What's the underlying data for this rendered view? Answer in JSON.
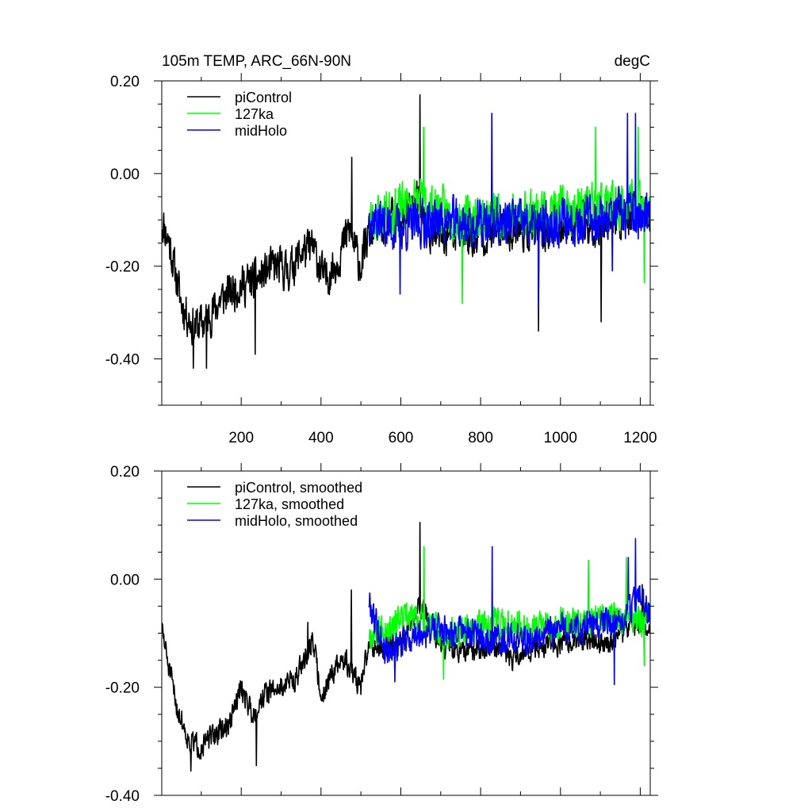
{
  "chart_data": [
    {
      "type": "line",
      "title": "105m TEMP, ARC_66N-90N",
      "units": "degC",
      "xlabel": "",
      "ylabel": "",
      "xlim": [
        1,
        1225
      ],
      "ylim": [
        -0.5,
        0.2
      ],
      "x_ticks": [
        200,
        400,
        600,
        800,
        1000,
        1200
      ],
      "x_tick_labels": [
        "200",
        "400",
        "600",
        "800",
        "1000",
        "1200"
      ],
      "y_ticks": [
        0.2,
        0.0,
        -0.2,
        -0.4
      ],
      "y_tick_labels": [
        "0.20",
        "0.00",
        "-0.20",
        "-0.40"
      ],
      "legend_position": "top-left",
      "series": [
        {
          "name": "piControl",
          "color": "#000000",
          "x_start": 1,
          "x_end": 1225,
          "noise": 0.06,
          "seed": 11,
          "anchors": [
            [
              1,
              -0.1
            ],
            [
              20,
              -0.15
            ],
            [
              50,
              -0.28
            ],
            [
              80,
              -0.33
            ],
            [
              110,
              -0.32
            ],
            [
              150,
              -0.27
            ],
            [
              200,
              -0.24
            ],
            [
              240,
              -0.23
            ],
            [
              280,
              -0.2
            ],
            [
              320,
              -0.21
            ],
            [
              350,
              -0.17
            ],
            [
              380,
              -0.16
            ],
            [
              410,
              -0.23
            ],
            [
              440,
              -0.19
            ],
            [
              470,
              -0.12
            ],
            [
              500,
              -0.2
            ],
            [
              520,
              -0.13
            ],
            [
              560,
              -0.11
            ],
            [
              600,
              -0.1
            ],
            [
              640,
              -0.06
            ],
            [
              680,
              -0.14
            ],
            [
              720,
              -0.13
            ],
            [
              780,
              -0.14
            ],
            [
              840,
              -0.12
            ],
            [
              900,
              -0.12
            ],
            [
              960,
              -0.13
            ],
            [
              1020,
              -0.1
            ],
            [
              1080,
              -0.12
            ],
            [
              1120,
              -0.09
            ],
            [
              1160,
              -0.1
            ],
            [
              1200,
              -0.08
            ],
            [
              1225,
              -0.1
            ]
          ],
          "spikes": [
            [
              648,
              0.17
            ],
            [
              477,
              0.035
            ],
            [
              80,
              -0.42
            ],
            [
              113,
              -0.42
            ],
            [
              235,
              -0.39
            ],
            [
              1102,
              -0.32
            ],
            [
              945,
              -0.34
            ]
          ]
        },
        {
          "name": "127ka",
          "color": "#00ff00",
          "x_start": 520,
          "x_end": 1225,
          "noise": 0.07,
          "seed": 23,
          "anchors": [
            [
              520,
              -0.1
            ],
            [
              580,
              -0.08
            ],
            [
              640,
              -0.06
            ],
            [
              700,
              -0.08
            ],
            [
              760,
              -0.1
            ],
            [
              820,
              -0.09
            ],
            [
              880,
              -0.09
            ],
            [
              940,
              -0.08
            ],
            [
              1000,
              -0.08
            ],
            [
              1060,
              -0.07
            ],
            [
              1120,
              -0.07
            ],
            [
              1180,
              -0.07
            ],
            [
              1225,
              -0.08
            ]
          ],
          "spikes": [
            [
              657,
              0.1
            ],
            [
              1195,
              0.1
            ],
            [
              1088,
              0.1
            ],
            [
              1210,
              -0.235
            ],
            [
              754,
              -0.28
            ]
          ]
        },
        {
          "name": "midHolo",
          "color": "#0000ff",
          "x_start": 520,
          "x_end": 1225,
          "noise": 0.07,
          "seed": 37,
          "anchors": [
            [
              520,
              -0.09
            ],
            [
              580,
              -0.12
            ],
            [
              640,
              -0.11
            ],
            [
              700,
              -0.1
            ],
            [
              760,
              -0.11
            ],
            [
              820,
              -0.11
            ],
            [
              880,
              -0.1
            ],
            [
              940,
              -0.12
            ],
            [
              1000,
              -0.1
            ],
            [
              1060,
              -0.1
            ],
            [
              1120,
              -0.09
            ],
            [
              1180,
              -0.09
            ],
            [
              1225,
              -0.1
            ]
          ],
          "spikes": [
            [
              1188,
              0.13
            ],
            [
              1168,
              0.13
            ],
            [
              828,
              0.13
            ],
            [
              945,
              -0.29
            ],
            [
              598,
              -0.26
            ],
            [
              1130,
              -0.21
            ]
          ]
        }
      ]
    },
    {
      "type": "line",
      "title": "",
      "units": "",
      "xlabel": "",
      "ylabel": "",
      "xlim": [
        1,
        1225
      ],
      "ylim": [
        -0.4,
        0.2
      ],
      "x_ticks": [
        200,
        400,
        600,
        800,
        1000,
        1200
      ],
      "x_tick_labels": [],
      "y_ticks": [
        0.2,
        0.0,
        -0.2,
        -0.4
      ],
      "y_tick_labels": [
        "0.20",
        "0.00",
        "-0.20",
        "-0.40"
      ],
      "legend_position": "top-left",
      "series": [
        {
          "name": "piControl, smoothed",
          "color": "#000000",
          "x_start": 1,
          "x_end": 1225,
          "noise": 0.03,
          "seed": 51,
          "anchors": [
            [
              1,
              -0.09
            ],
            [
              20,
              -0.17
            ],
            [
              40,
              -0.24
            ],
            [
              70,
              -0.3
            ],
            [
              100,
              -0.31
            ],
            [
              130,
              -0.29
            ],
            [
              170,
              -0.27
            ],
            [
              200,
              -0.2
            ],
            [
              230,
              -0.25
            ],
            [
              260,
              -0.21
            ],
            [
              300,
              -0.2
            ],
            [
              340,
              -0.18
            ],
            [
              380,
              -0.11
            ],
            [
              400,
              -0.22
            ],
            [
              430,
              -0.17
            ],
            [
              460,
              -0.15
            ],
            [
              500,
              -0.2
            ],
            [
              520,
              -0.12
            ],
            [
              560,
              -0.13
            ],
            [
              600,
              -0.11
            ],
            [
              650,
              -0.05
            ],
            [
              700,
              -0.12
            ],
            [
              760,
              -0.14
            ],
            [
              820,
              -0.12
            ],
            [
              880,
              -0.15
            ],
            [
              940,
              -0.12
            ],
            [
              1000,
              -0.12
            ],
            [
              1060,
              -0.11
            ],
            [
              1120,
              -0.12
            ],
            [
              1180,
              -0.08
            ],
            [
              1225,
              -0.09
            ]
          ],
          "spikes": [
            [
              648,
              0.105
            ],
            [
              476,
              -0.02
            ],
            [
              367,
              -0.08
            ],
            [
              74,
              -0.355
            ],
            [
              238,
              -0.345
            ],
            [
              1205,
              -0.01
            ]
          ]
        },
        {
          "name": "127ka, smoothed",
          "color": "#00ff00",
          "x_start": 520,
          "x_end": 1225,
          "noise": 0.04,
          "seed": 67,
          "anchors": [
            [
              520,
              -0.1
            ],
            [
              580,
              -0.08
            ],
            [
              640,
              -0.07
            ],
            [
              700,
              -0.1
            ],
            [
              760,
              -0.1
            ],
            [
              820,
              -0.08
            ],
            [
              880,
              -0.08
            ],
            [
              940,
              -0.09
            ],
            [
              1000,
              -0.08
            ],
            [
              1060,
              -0.08
            ],
            [
              1120,
              -0.07
            ],
            [
              1180,
              -0.07
            ],
            [
              1225,
              -0.08
            ]
          ],
          "spikes": [
            [
              658,
              0.06
            ],
            [
              1165,
              0.04
            ],
            [
              1070,
              0.035
            ],
            [
              1210,
              -0.16
            ],
            [
              707,
              -0.185
            ]
          ]
        },
        {
          "name": "midHolo, smoothed",
          "color": "#0000ff",
          "x_start": 520,
          "x_end": 1225,
          "noise": 0.04,
          "seed": 79,
          "anchors": [
            [
              520,
              -0.04
            ],
            [
              560,
              -0.13
            ],
            [
              600,
              -0.12
            ],
            [
              640,
              -0.1
            ],
            [
              700,
              -0.09
            ],
            [
              760,
              -0.1
            ],
            [
              820,
              -0.11
            ],
            [
              880,
              -0.11
            ],
            [
              940,
              -0.11
            ],
            [
              1000,
              -0.09
            ],
            [
              1060,
              -0.09
            ],
            [
              1120,
              -0.08
            ],
            [
              1160,
              -0.08
            ],
            [
              1195,
              -0.02
            ],
            [
              1225,
              -0.07
            ]
          ],
          "spikes": [
            [
              1188,
              0.075
            ],
            [
              829,
              0.06
            ],
            [
              1170,
              0.04
            ],
            [
              1135,
              -0.195
            ],
            [
              585,
              -0.19
            ]
          ]
        }
      ]
    }
  ]
}
